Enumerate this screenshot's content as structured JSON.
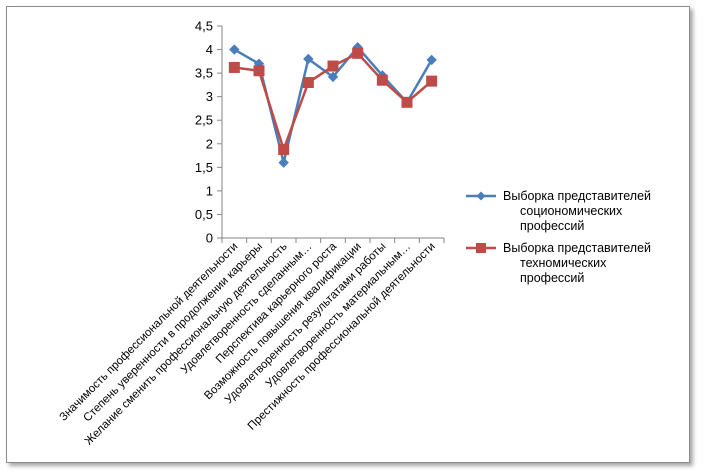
{
  "chart_data": {
    "type": "line",
    "title": "",
    "xlabel": "",
    "ylabel": "",
    "ylim": [
      0,
      4.5
    ],
    "yticks": [
      "0",
      "0,5",
      "1",
      "1,5",
      "2",
      "2,5",
      "3",
      "3,5",
      "4",
      "4,5"
    ],
    "grid": false,
    "legend_position": "right",
    "categories": [
      "Значимость профессиональной деятельности",
      "Степень уверенности в продолжении карьеры",
      "Желание сменить профессиональную деятельность",
      "Удовлетворенность сделанным…",
      "Перспектива карьерного роста",
      "Возможность повышения квалификации",
      "Удовлетворенность результатами работы",
      "Удовлетворенность материальным…",
      "Престижность профессиональной деятельности"
    ],
    "series": [
      {
        "name": "Выборка представителей социономических профессий",
        "legend_lines": [
          "Выборка представителей",
          "социономических",
          "профессий"
        ],
        "color": "#4a7ebb",
        "marker": "diamond",
        "values": [
          4.0,
          3.7,
          1.6,
          3.8,
          3.42,
          4.05,
          3.45,
          2.88,
          3.78
        ]
      },
      {
        "name": "Выборка представителей техномических профессий",
        "legend_lines": [
          "Выборка представителей",
          "техномических",
          "профессий"
        ],
        "color": "#be4b48",
        "marker": "square",
        "values": [
          3.62,
          3.55,
          1.88,
          3.3,
          3.65,
          3.92,
          3.35,
          2.88,
          3.33
        ]
      }
    ]
  }
}
